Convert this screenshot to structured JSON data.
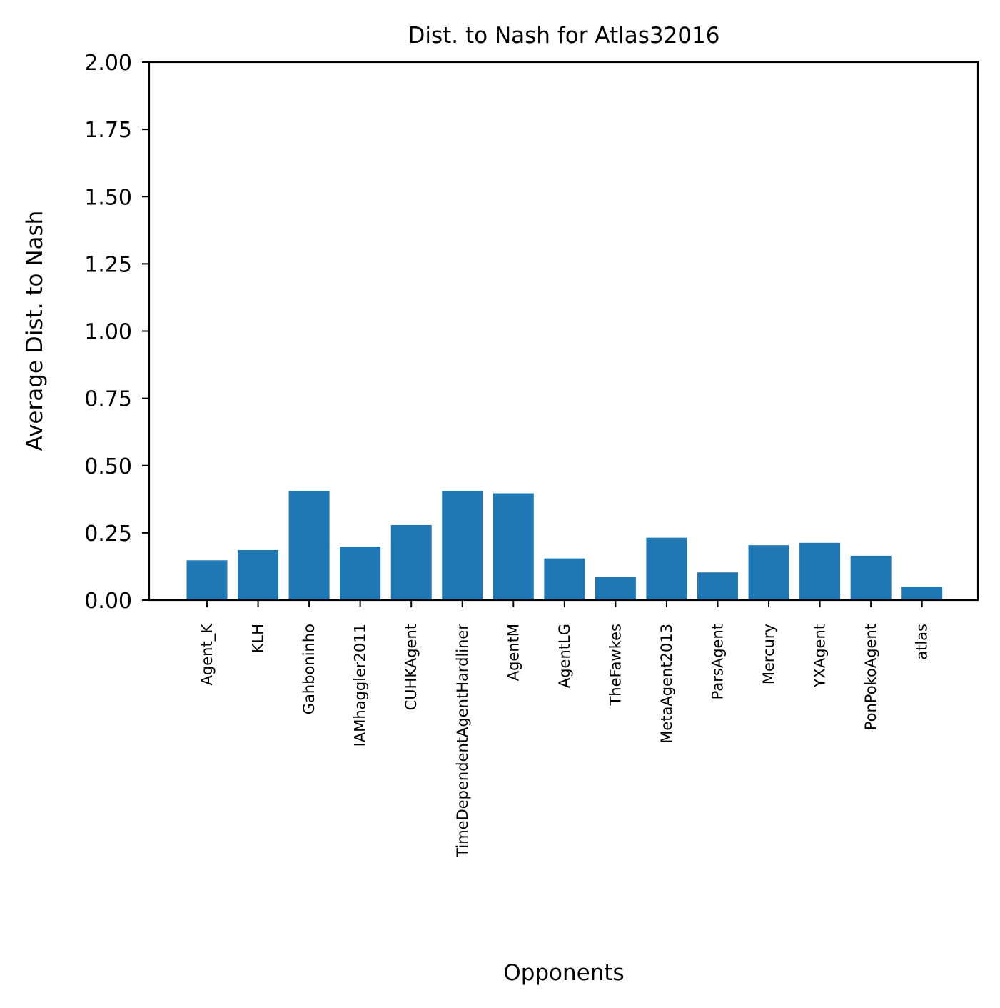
{
  "chart_data": {
    "type": "bar",
    "title": "Dist. to Nash for Atlas32016",
    "xlabel": "Opponents",
    "ylabel": "Average Dist. to Nash",
    "ylim": [
      0,
      2.0
    ],
    "yticks": [
      "0.00",
      "0.25",
      "0.50",
      "0.75",
      "1.00",
      "1.25",
      "1.50",
      "1.75",
      "2.00"
    ],
    "categories": [
      "Agent_K",
      "KLH",
      "Gahboninho",
      "IAMhaggler2011",
      "CUHKAgent",
      "TimeDependentAgentHardliner",
      "AgentM",
      "AgentLG",
      "TheFawkes",
      "MetaAgent2013",
      "ParsAgent",
      "Mercury",
      "YXAgent",
      "PonPokoAgent",
      "atlas"
    ],
    "values": [
      0.148,
      0.186,
      0.405,
      0.199,
      0.279,
      0.405,
      0.397,
      0.155,
      0.085,
      0.232,
      0.103,
      0.204,
      0.213,
      0.165,
      0.05
    ],
    "bar_color": "#1f77b4",
    "grid": false,
    "legend": "none"
  }
}
